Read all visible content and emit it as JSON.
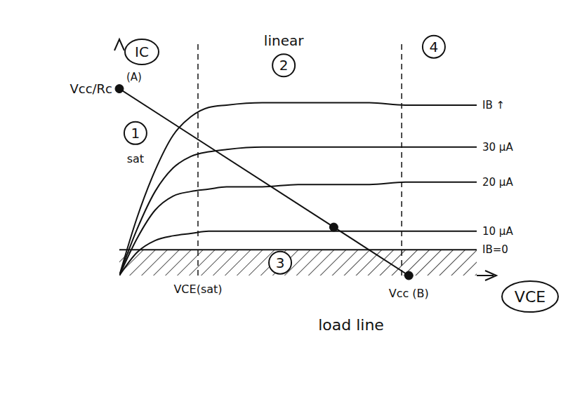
{
  "chart_data": {
    "type": "line",
    "x_label": "VCE",
    "y_label": "IC",
    "xlim": [
      0,
      10
    ],
    "ylim": [
      0,
      10
    ],
    "tick_labels": false,
    "grid": false,
    "x": [
      0,
      0.5,
      1,
      1.5,
      2,
      2.5,
      3,
      4,
      5,
      6,
      7,
      8,
      9,
      10
    ],
    "series": [
      {
        "name": "IB ↑",
        "color": "#111111",
        "values": [
          0,
          2.5,
          4.5,
          6,
          6.8,
          7.2,
          7.3,
          7.4,
          7.4,
          7.4,
          7.4,
          7.3,
          7.3,
          7.3
        ]
      },
      {
        "name": "30 μA",
        "color": "#111111",
        "values": [
          0,
          2,
          3.6,
          4.6,
          5.1,
          5.3,
          5.4,
          5.5,
          5.5,
          5.5,
          5.5,
          5.5,
          5.5,
          5.5
        ]
      },
      {
        "name": "20 μA",
        "color": "#111111",
        "values": [
          0,
          1.6,
          2.8,
          3.4,
          3.6,
          3.7,
          3.8,
          3.8,
          3.9,
          3.9,
          3.9,
          4,
          4,
          4
        ]
      },
      {
        "name": "10 μA",
        "color": "#111111",
        "values": [
          0,
          1,
          1.5,
          1.7,
          1.8,
          1.9,
          1.9,
          1.9,
          1.9,
          1.9,
          1.9,
          1.9,
          1.9,
          1.9
        ]
      },
      {
        "name": "IB=0",
        "color": "#111111",
        "values": [
          1.1,
          1.1,
          1.1,
          1.1,
          1.1,
          1.1,
          1.1,
          1.1,
          1.1,
          1.1,
          1.1,
          1.1,
          1.1,
          1.1
        ]
      }
    ],
    "cutoff_region": {
      "ylim": [
        0,
        1.1
      ]
    },
    "load_line": {
      "label": "load line",
      "x": [
        0,
        8.1
      ],
      "values": [
        8,
        0
      ],
      "start_label": "(A)",
      "end_label": "Vcc (B)",
      "y_intercept_label": "Vcc/Rc",
      "q_point": {
        "x": 6,
        "y": 2.07
      }
    },
    "boundaries": [
      {
        "value": 2.2,
        "label": "VCE(sat)"
      },
      {
        "value": 7.9
      }
    ],
    "regions": [
      {
        "number": "1",
        "label": "sat"
      },
      {
        "number": "2",
        "label": "linear"
      },
      {
        "number": "3"
      },
      {
        "number": "4"
      }
    ]
  }
}
